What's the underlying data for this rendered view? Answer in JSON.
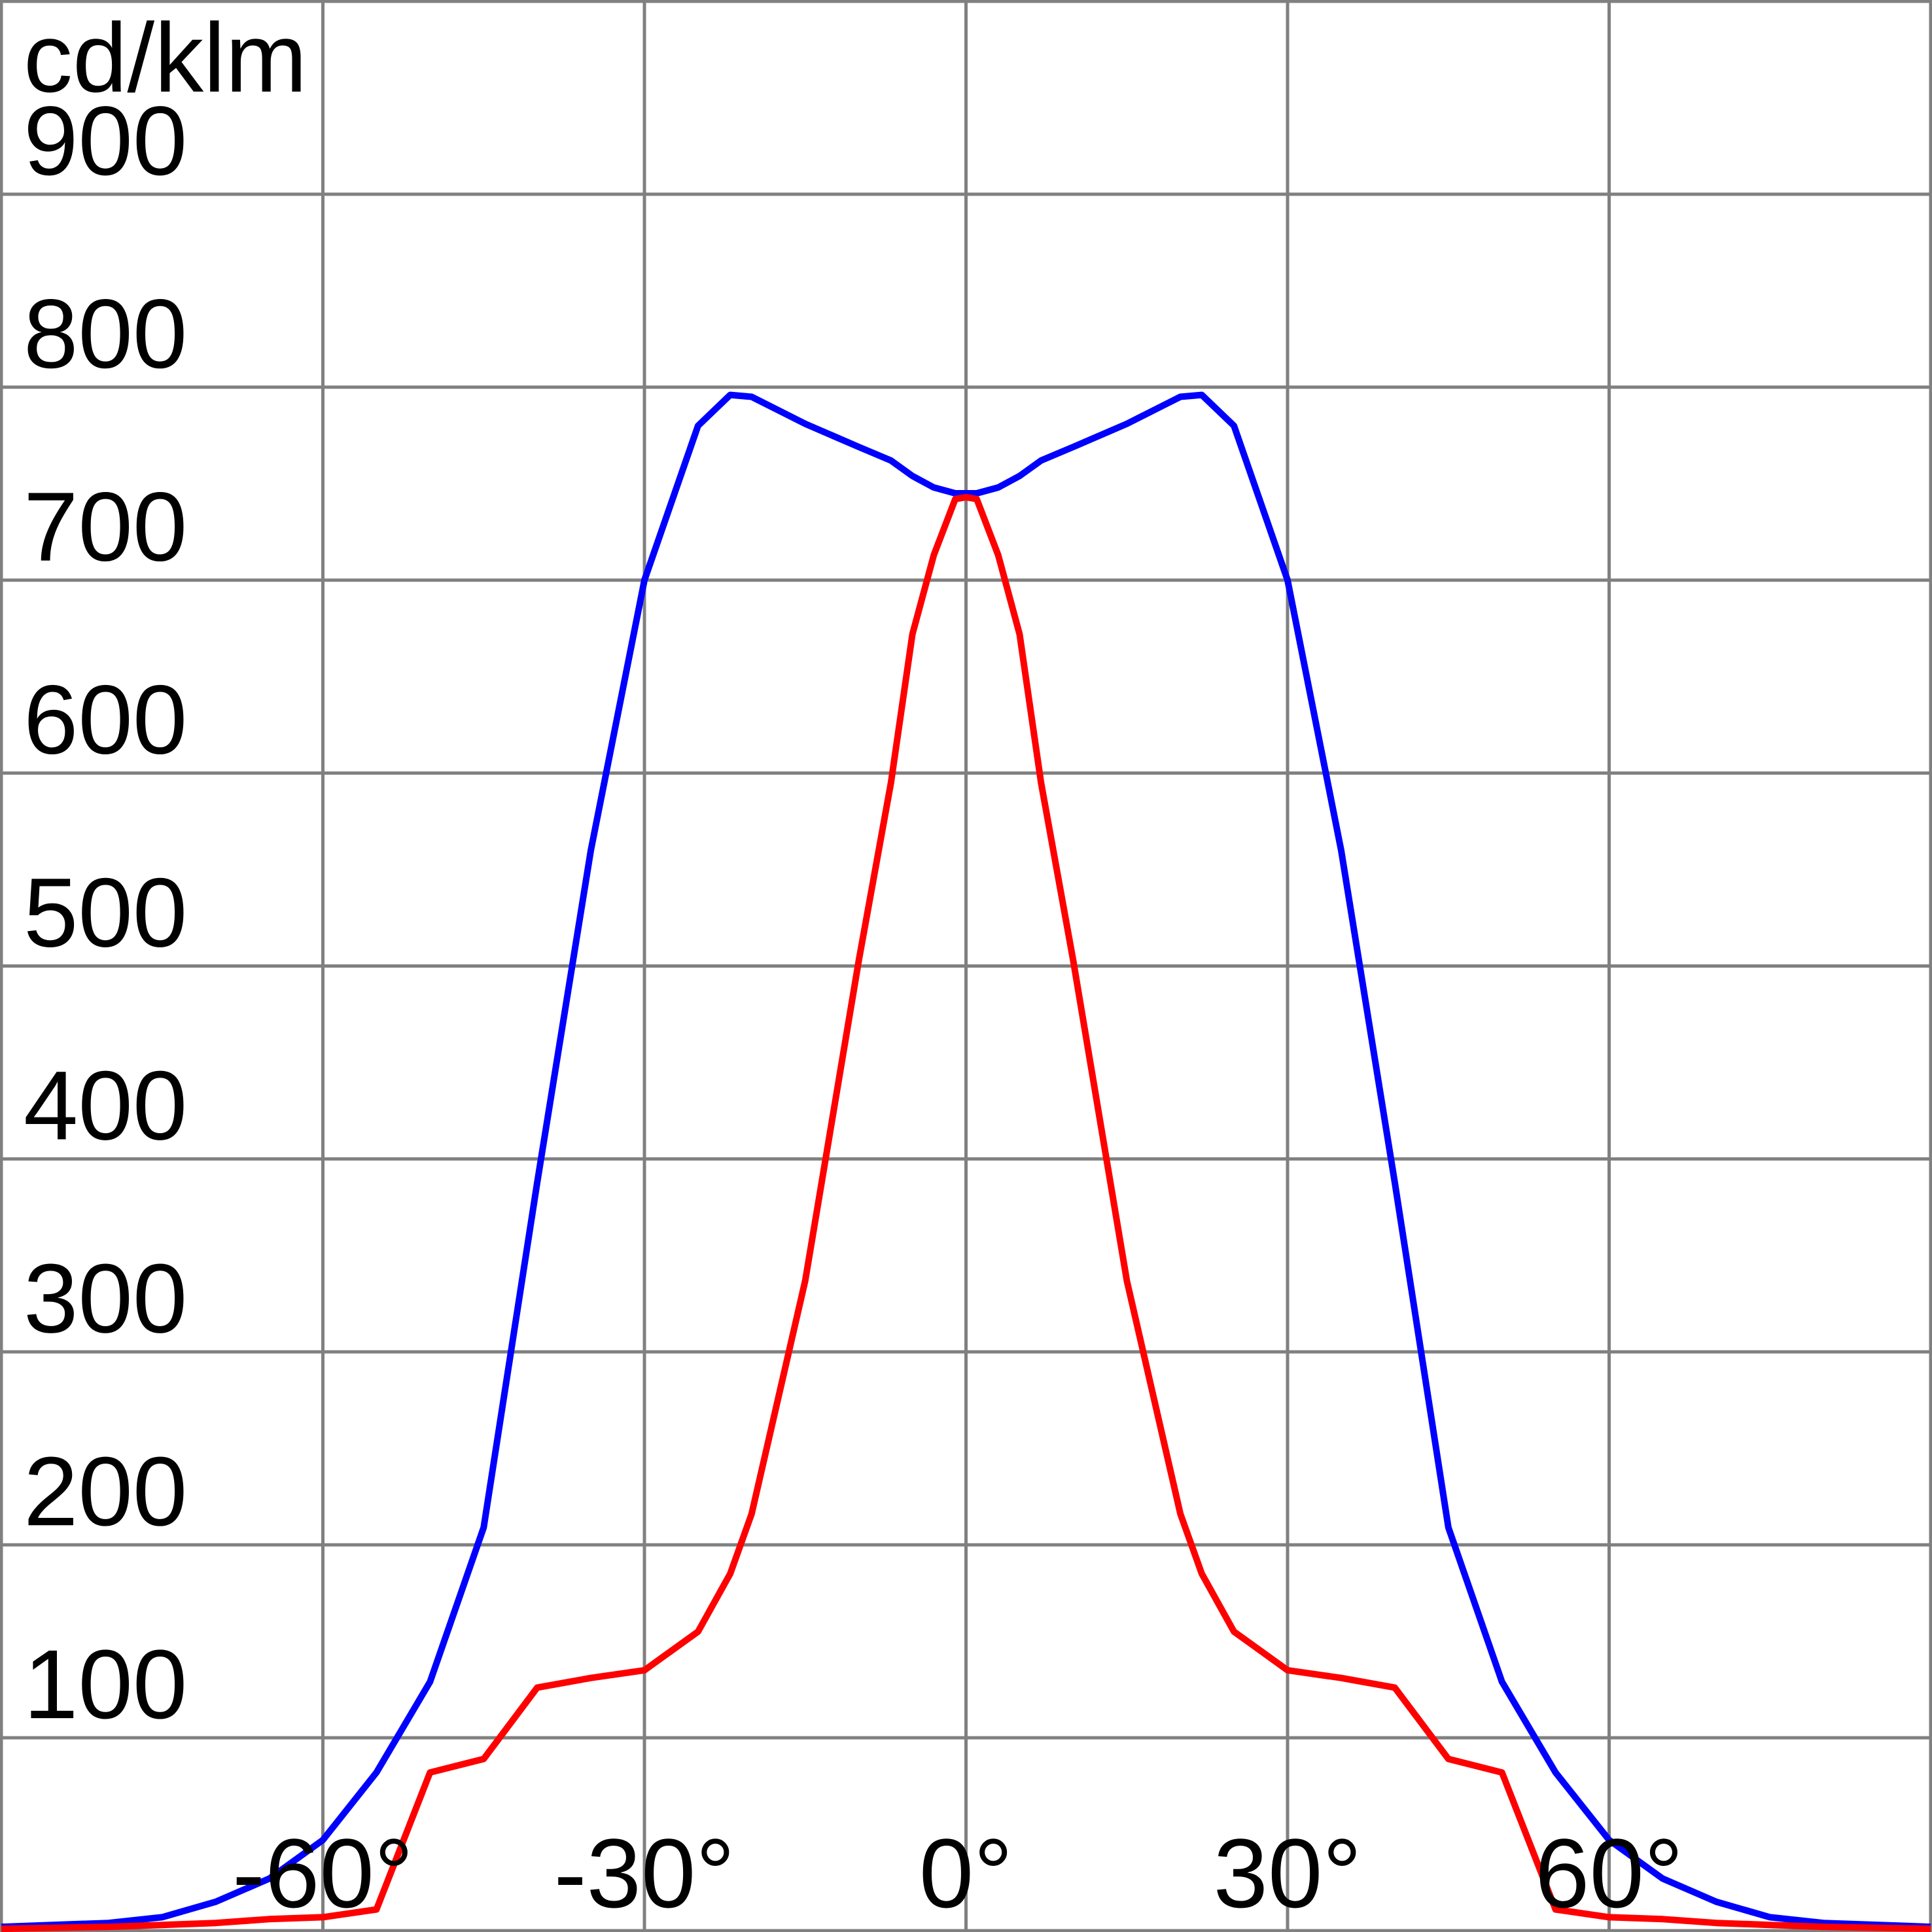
{
  "chart_data": {
    "type": "line",
    "y_label": "cd/klm",
    "x": [
      -90,
      -80,
      -75,
      -70,
      -65,
      -60,
      -55,
      -50,
      -45,
      -40,
      -35,
      -30,
      -25,
      -22,
      -20,
      -15,
      -10,
      -7,
      -5,
      -3,
      -1,
      0,
      1,
      3,
      5,
      7,
      10,
      15,
      20,
      22,
      25,
      30,
      35,
      40,
      45,
      50,
      55,
      60,
      65,
      70,
      75,
      80,
      90
    ],
    "series": [
      {
        "color": "#0000ff",
        "values": [
          2,
          4,
          7,
          15,
          27,
          47,
          82,
          129,
          209,
          388,
          560,
          700,
          780,
          796,
          795,
          781,
          769,
          762,
          754,
          748,
          745,
          745,
          745,
          748,
          754,
          762,
          769,
          781,
          795,
          796,
          780,
          700,
          560,
          388,
          209,
          129,
          82,
          47,
          27,
          15,
          7,
          4,
          2
        ]
      },
      {
        "color": "#ff0000",
        "values": [
          1,
          2,
          3,
          4,
          6,
          7,
          11,
          82,
          89,
          126,
          131,
          135,
          155,
          185,
          216,
          337,
          503,
          595,
          672,
          713,
          742,
          743,
          742,
          713,
          672,
          595,
          503,
          337,
          216,
          185,
          155,
          135,
          131,
          126,
          89,
          82,
          11,
          7,
          6,
          4,
          3,
          2,
          1
        ]
      }
    ],
    "xlim": [
      -90,
      90
    ],
    "xticks": [
      {
        "value": -60,
        "label": "-60°"
      },
      {
        "value": -30,
        "label": "-30°"
      },
      {
        "value": 0,
        "label": "0°"
      },
      {
        "value": 30,
        "label": "30°"
      },
      {
        "value": 60,
        "label": "60°"
      }
    ],
    "ylim": [
      0,
      1000
    ],
    "yticks": [
      100,
      200,
      300,
      400,
      500,
      600,
      700,
      800,
      900
    ],
    "grid": true
  }
}
